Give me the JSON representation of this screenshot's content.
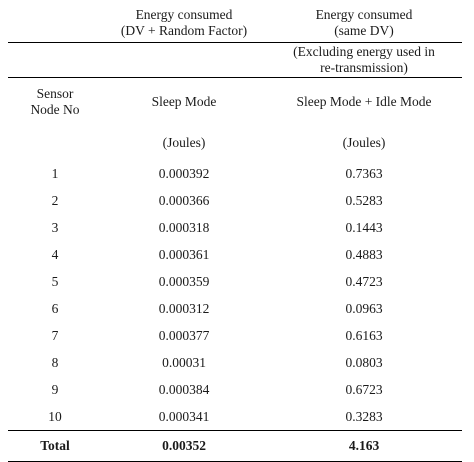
{
  "table": {
    "header": {
      "col2_line1": "Energy consumed",
      "col2_line2": "(DV + Random Factor)",
      "col3_line1": "Energy consumed",
      "col3_line2": "(same DV)",
      "col3_note_line1": "(Excluding energy used in",
      "col3_note_line2": "re-transmission)",
      "col1_line1": "Sensor",
      "col1_line2": "Node No",
      "col2_mode": "Sleep Mode",
      "col3_mode": "Sleep Mode + Idle Mode",
      "col2_unit": "(Joules)",
      "col3_unit": "(Joules)"
    },
    "rows": [
      {
        "node": "1",
        "sleep": "0.000392",
        "sleep_idle": "0.7363"
      },
      {
        "node": "2",
        "sleep": "0.000366",
        "sleep_idle": "0.5283"
      },
      {
        "node": "3",
        "sleep": "0.000318",
        "sleep_idle": "0.1443"
      },
      {
        "node": "4",
        "sleep": "0.000361",
        "sleep_idle": "0.4883"
      },
      {
        "node": "5",
        "sleep": "0.000359",
        "sleep_idle": "0.4723"
      },
      {
        "node": "6",
        "sleep": "0.000312",
        "sleep_idle": "0.0963"
      },
      {
        "node": "7",
        "sleep": "0.000377",
        "sleep_idle": "0.6163"
      },
      {
        "node": "8",
        "sleep": "0.00031",
        "sleep_idle": "0.0803"
      },
      {
        "node": "9",
        "sleep": "0.000384",
        "sleep_idle": "0.6723"
      },
      {
        "node": "10",
        "sleep": "0.000341",
        "sleep_idle": "0.3283"
      }
    ],
    "total": {
      "label": "Total",
      "sleep": "0.00352",
      "sleep_idle": "4.163"
    }
  }
}
